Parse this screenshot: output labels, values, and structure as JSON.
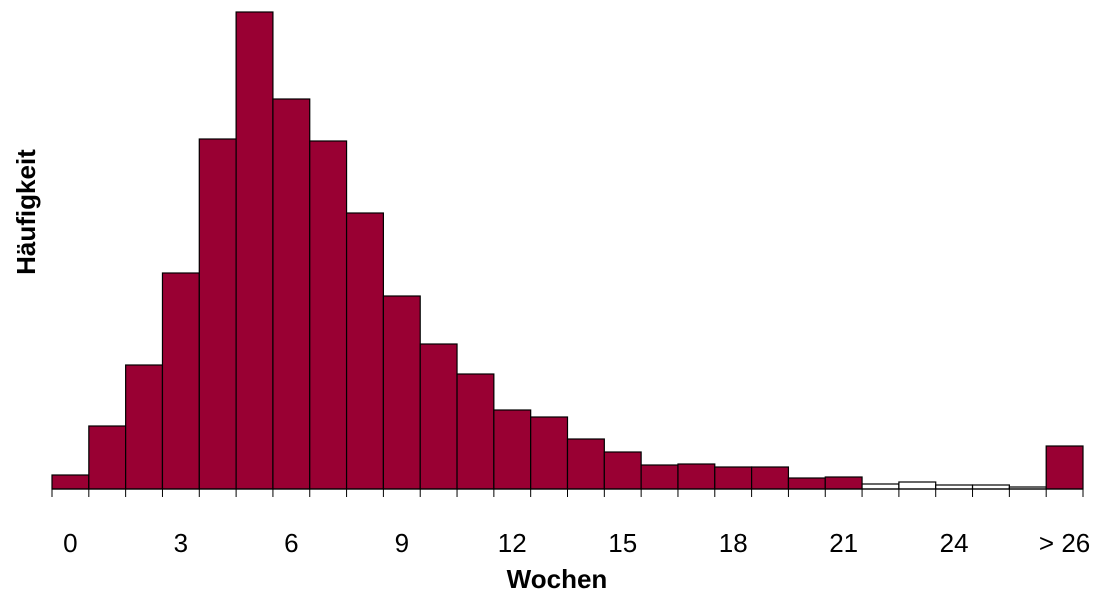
{
  "chart_data": {
    "type": "bar",
    "x_label": "Wochen",
    "y_label": "Häufigkeit",
    "categories": [
      "0",
      null,
      null,
      "3",
      null,
      null,
      "6",
      null,
      null,
      "9",
      null,
      null,
      "12",
      null,
      null,
      "15",
      null,
      null,
      "18",
      null,
      null,
      "21",
      null,
      null,
      "24",
      null,
      null,
      "> 26"
    ],
    "values": [
      14,
      63,
      124,
      216,
      350,
      477,
      390,
      348,
      276,
      193,
      145,
      115,
      79,
      72,
      50,
      37,
      24,
      25,
      22,
      22,
      11,
      12,
      5,
      7,
      4,
      4,
      2,
      43
    ],
    "colors": [
      "#990033",
      "#990033",
      "#990033",
      "#990033",
      "#990033",
      "#990033",
      "#990033",
      "#990033",
      "#990033",
      "#990033",
      "#990033",
      "#990033",
      "#990033",
      "#990033",
      "#990033",
      "#990033",
      "#990033",
      "#990033",
      "#990033",
      "#990033",
      "#990033",
      "#990033",
      "#ffffff",
      "#ffffff",
      "#ffffff",
      "#ffffff",
      "#ffffff",
      "#990033"
    ],
    "ylim": [
      0,
      480
    ]
  }
}
